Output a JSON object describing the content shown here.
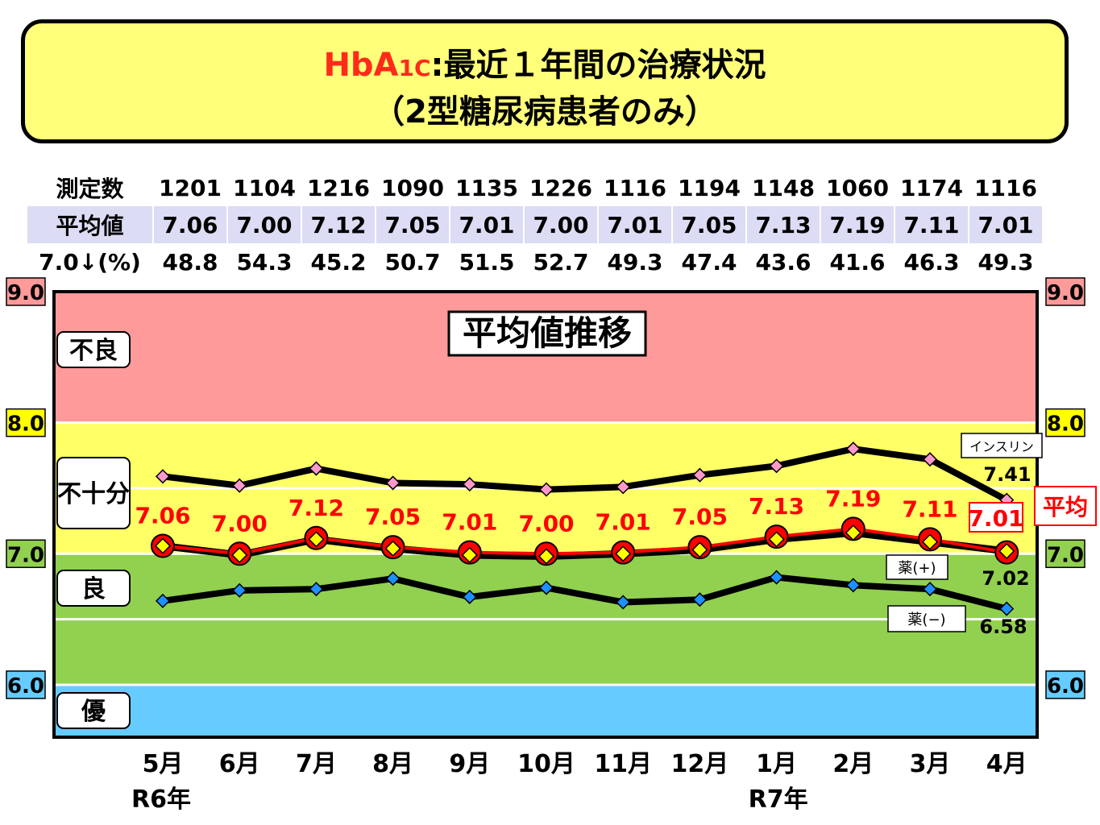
{
  "title": {
    "hba_main": "HbA",
    "hba_sub": "1C",
    "line1_rest": ":最近１年間の治療状況",
    "line2": "（2型糖尿病患者のみ）"
  },
  "stats": {
    "rows": [
      {
        "label": "測定数",
        "values": [
          "1201",
          "1104",
          "1216",
          "1090",
          "1135",
          "1226",
          "1116",
          "1194",
          "1148",
          "1060",
          "1174",
          "1116"
        ]
      },
      {
        "label": "平均値",
        "values": [
          "7.06",
          "7.00",
          "7.12",
          "7.05",
          "7.01",
          "7.00",
          "7.01",
          "7.05",
          "7.13",
          "7.19",
          "7.11",
          "7.01"
        ]
      },
      {
        "label": "7.0↓(%)",
        "values": [
          "48.8",
          "54.3",
          "45.2",
          "50.7",
          "51.5",
          "52.7",
          "49.3",
          "47.4",
          "43.6",
          "41.6",
          "46.3",
          "49.3"
        ]
      }
    ]
  },
  "chart_data": {
    "type": "line",
    "title": "平均値推移",
    "categories": [
      "5月",
      "6月",
      "7月",
      "8月",
      "9月",
      "10月",
      "11月",
      "12月",
      "1月",
      "2月",
      "3月",
      "4月"
    ],
    "year_labels": [
      {
        "index": 0,
        "text": "R6年"
      },
      {
        "index": 8,
        "text": "R7年"
      }
    ],
    "ylim": [
      5.6,
      9.0
    ],
    "ytick_labels": [
      "9.0",
      "8.0",
      "7.0",
      "6.0"
    ],
    "zones": [
      {
        "label": "不良",
        "from": 8.0,
        "to": 9.0,
        "color": "#ff9a9a"
      },
      {
        "label": "不十分",
        "from": 7.0,
        "to": 8.0,
        "color": "#ffff66"
      },
      {
        "label": "良",
        "from": 6.0,
        "to": 7.0,
        "color": "#92d050"
      },
      {
        "label": "優",
        "from": 5.6,
        "to": 6.0,
        "color": "#66ccff"
      }
    ],
    "tick_colors": {
      "9.0": "#ff9a9a",
      "8.0": "#ffff00",
      "7.0": "#92d050",
      "6.0": "#66ccff"
    },
    "series": [
      {
        "name": "インスリン",
        "marker_color": "#ff99cc",
        "line_color": "#000000",
        "values": [
          7.59,
          7.52,
          7.65,
          7.54,
          7.53,
          7.49,
          7.51,
          7.6,
          7.67,
          7.8,
          7.72,
          7.41
        ],
        "end_label": "7.41"
      },
      {
        "name": "平均",
        "marker_color": "#ff0000",
        "line_color": "#ff0000",
        "values": [
          7.06,
          7.0,
          7.12,
          7.05,
          7.01,
          7.0,
          7.01,
          7.05,
          7.13,
          7.19,
          7.11,
          7.01
        ],
        "data_labels": [
          "7.06",
          "7.00",
          "7.12",
          "7.05",
          "7.01",
          "7.00",
          "7.01",
          "7.05",
          "7.13",
          "7.19",
          "7.11",
          "7.01"
        ]
      },
      {
        "name": "薬(+)",
        "marker_color": "#ffff00",
        "line_color": "#000000",
        "values": [
          7.06,
          6.99,
          7.11,
          7.04,
          6.99,
          6.98,
          7.0,
          7.03,
          7.11,
          7.16,
          7.09,
          7.02
        ],
        "end_label": "7.02"
      },
      {
        "name": "薬(−)",
        "marker_color": "#1e90ff",
        "line_color": "#000000",
        "values": [
          6.64,
          6.72,
          6.73,
          6.81,
          6.67,
          6.74,
          6.63,
          6.65,
          6.82,
          6.76,
          6.73,
          6.58
        ],
        "end_label": "6.58"
      }
    ]
  }
}
